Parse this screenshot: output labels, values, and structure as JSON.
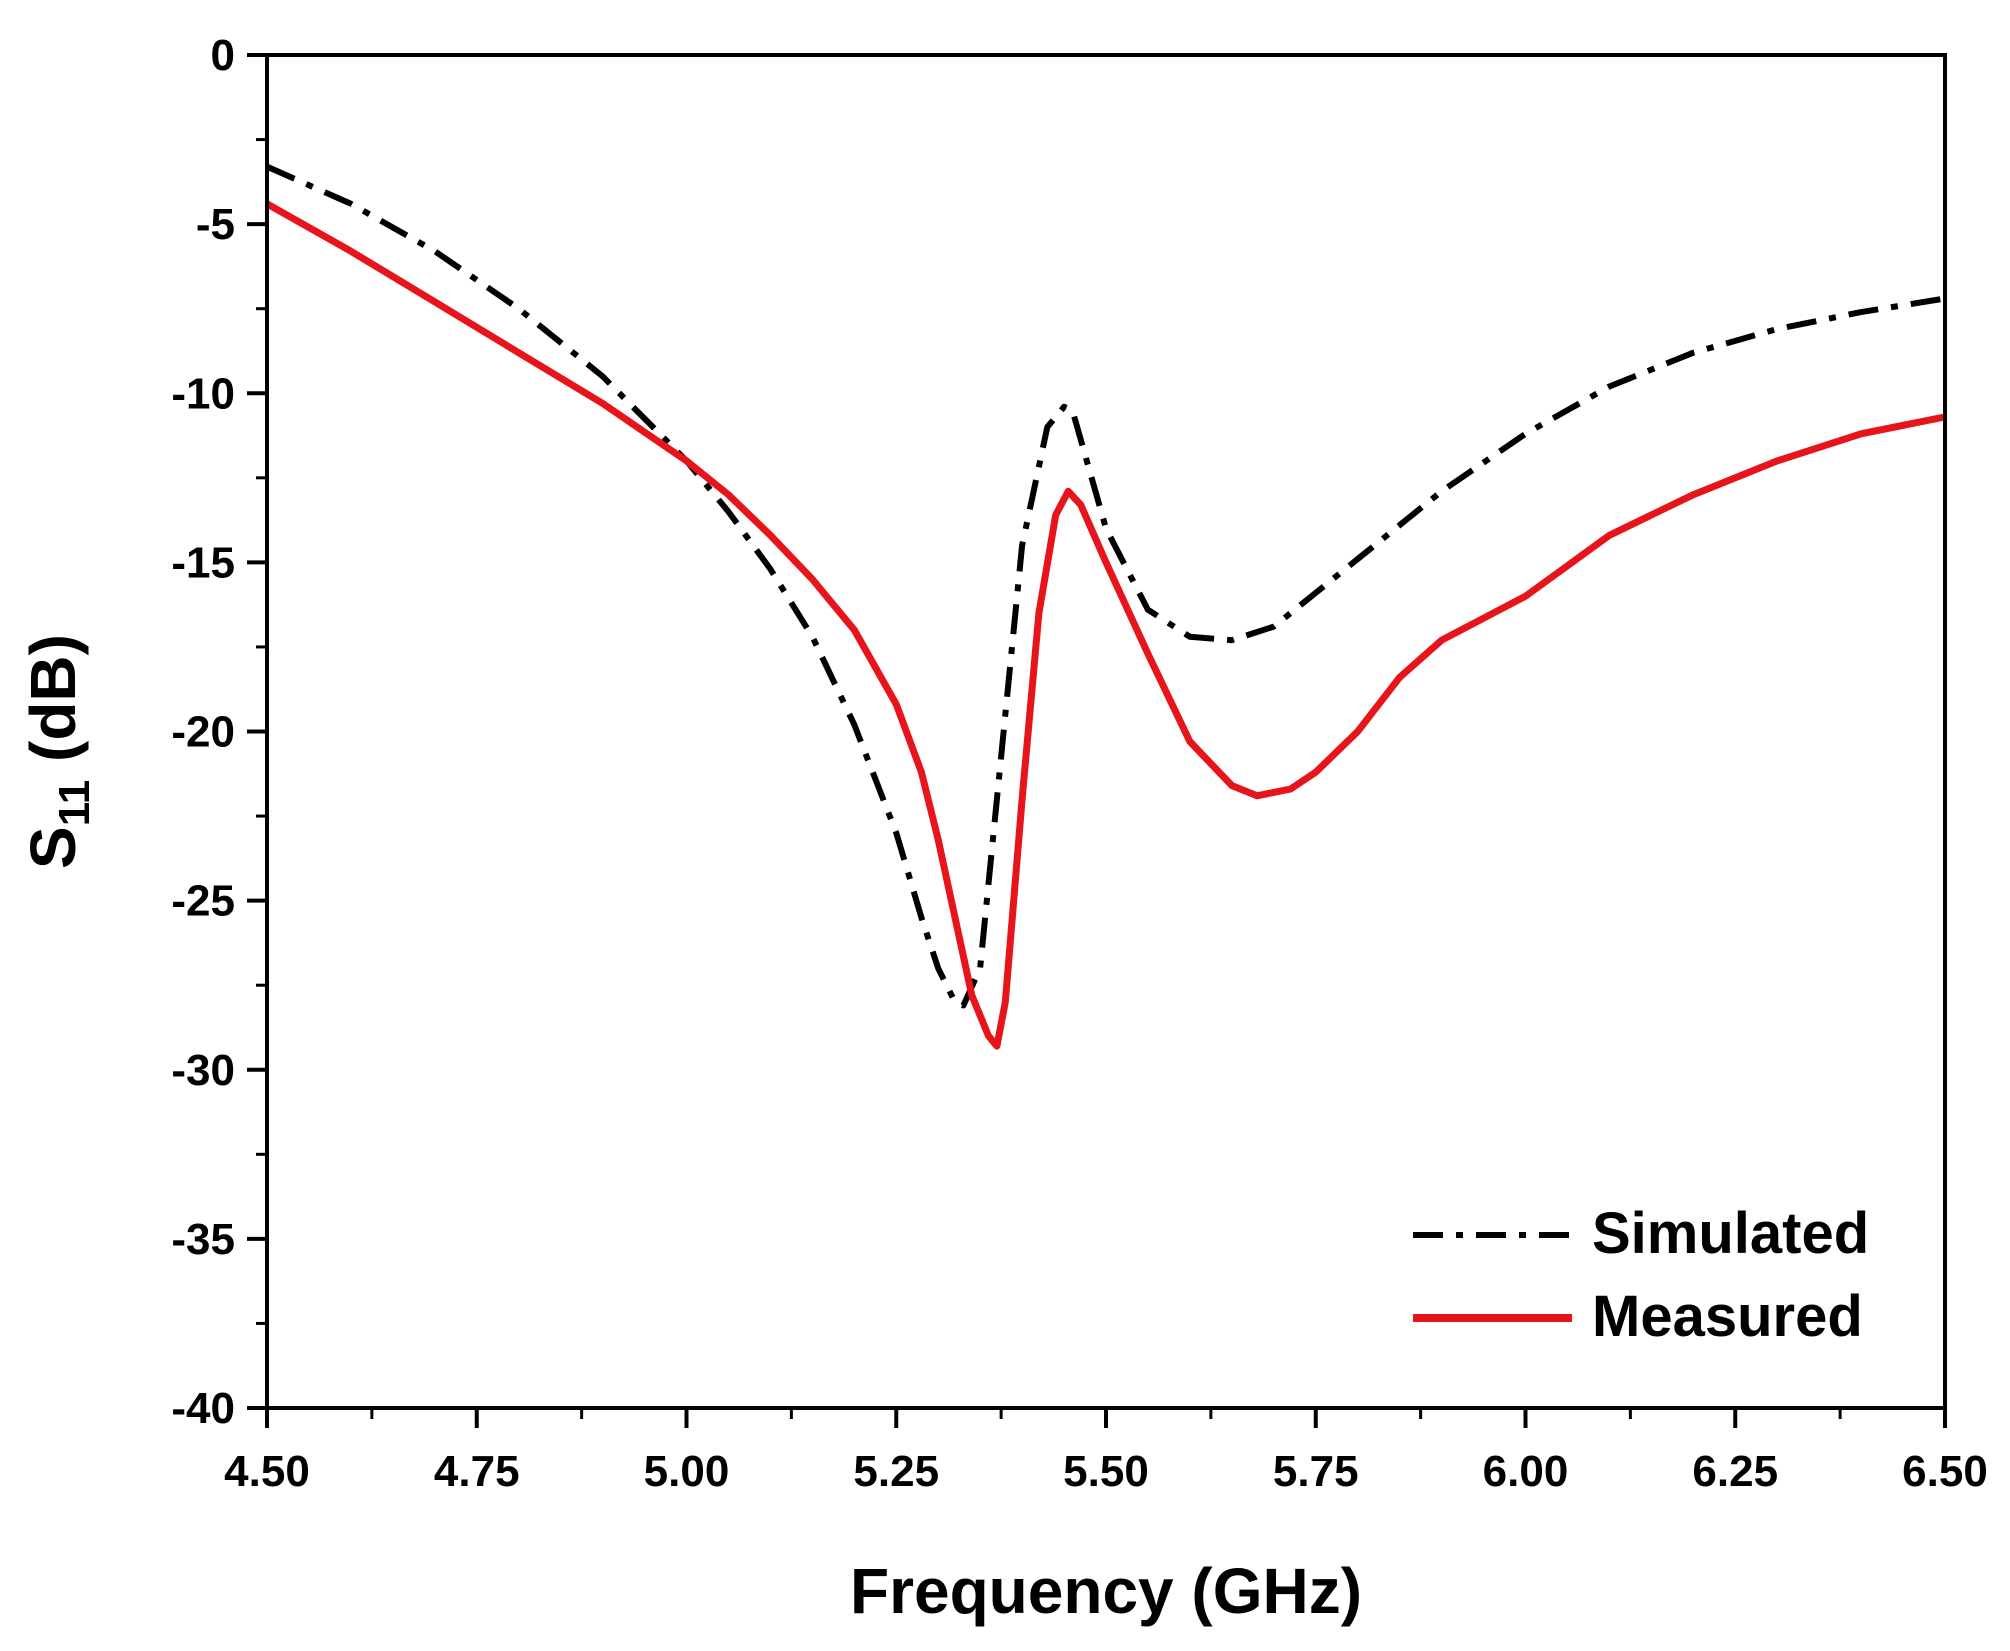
{
  "chart_data": {
    "type": "line",
    "title": "",
    "xlabel": "Frequency (GHz)",
    "ylabel": {
      "main": "S",
      "sub": "11",
      "unit": " (dB)"
    },
    "xlim": [
      4.5,
      6.5
    ],
    "ylim": [
      -40,
      0
    ],
    "xticks": [
      "4.50",
      "4.75",
      "5.00",
      "5.25",
      "5.50",
      "5.75",
      "6.00",
      "6.25",
      "6.50"
    ],
    "yticks": [
      "0",
      "-5",
      "-10",
      "-15",
      "-20",
      "-25",
      "-30",
      "-35",
      "-40"
    ],
    "grid": false,
    "legend_position": "bottom-right",
    "series": [
      {
        "name": "Simulated",
        "color": "#000000",
        "style": "dash-dot",
        "x": [
          4.5,
          4.6,
          4.7,
          4.8,
          4.9,
          5.0,
          5.05,
          5.1,
          5.15,
          5.2,
          5.25,
          5.28,
          5.3,
          5.32,
          5.33,
          5.35,
          5.37,
          5.4,
          5.43,
          5.45,
          5.46,
          5.5,
          5.55,
          5.6,
          5.65,
          5.7,
          5.8,
          5.9,
          6.0,
          6.1,
          6.2,
          6.3,
          6.4,
          6.5
        ],
        "y": [
          -3.3,
          -4.4,
          -5.8,
          -7.5,
          -9.5,
          -12.0,
          -13.5,
          -15.2,
          -17.2,
          -19.8,
          -23.0,
          -25.5,
          -27.0,
          -28.0,
          -28.1,
          -27.0,
          -22.0,
          -14.5,
          -11.0,
          -10.4,
          -10.5,
          -14.0,
          -16.4,
          -17.2,
          -17.3,
          -16.9,
          -14.9,
          -12.9,
          -11.2,
          -9.8,
          -8.8,
          -8.1,
          -7.6,
          -7.2
        ]
      },
      {
        "name": "Measured",
        "color": "#e8141b",
        "style": "solid",
        "x": [
          4.5,
          4.6,
          4.7,
          4.8,
          4.9,
          5.0,
          5.05,
          5.1,
          5.15,
          5.2,
          5.25,
          5.28,
          5.3,
          5.32,
          5.34,
          5.36,
          5.37,
          5.38,
          5.4,
          5.42,
          5.44,
          5.455,
          5.47,
          5.5,
          5.55,
          5.6,
          5.65,
          5.68,
          5.72,
          5.75,
          5.8,
          5.85,
          5.9,
          6.0,
          6.1,
          6.2,
          6.3,
          6.4,
          6.5
        ],
        "y": [
          -4.4,
          -5.8,
          -7.3,
          -8.8,
          -10.3,
          -12.0,
          -13.0,
          -14.2,
          -15.5,
          -17.0,
          -19.2,
          -21.2,
          -23.2,
          -25.5,
          -27.8,
          -29.0,
          -29.3,
          -28.0,
          -22.0,
          -16.5,
          -13.6,
          -12.9,
          -13.3,
          -15.0,
          -17.7,
          -20.3,
          -21.6,
          -21.9,
          -21.7,
          -21.2,
          -20.0,
          -18.4,
          -17.3,
          -16.0,
          -14.2,
          -13.0,
          -12.0,
          -11.2,
          -10.7
        ]
      }
    ]
  }
}
